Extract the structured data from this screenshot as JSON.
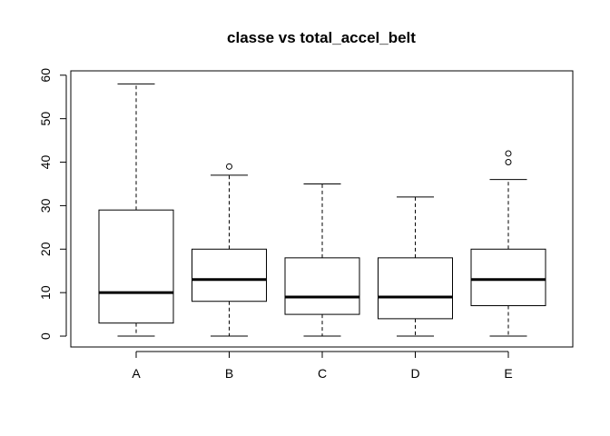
{
  "chart_data": {
    "type": "boxplot",
    "title": "classe vs total_accel_belt",
    "xlabel": "",
    "ylabel": "",
    "ylim": [
      -2.5,
      61
    ],
    "yticks": [
      0,
      10,
      20,
      30,
      40,
      50,
      60
    ],
    "categories": [
      "A",
      "B",
      "C",
      "D",
      "E"
    ],
    "boxes": [
      {
        "min": 0,
        "q1": 3,
        "median": 10,
        "q3": 29,
        "max": 58,
        "outliers": []
      },
      {
        "min": 0,
        "q1": 8,
        "median": 13,
        "q3": 20,
        "max": 37,
        "outliers": [
          39
        ]
      },
      {
        "min": 0,
        "q1": 5,
        "median": 9,
        "q3": 18,
        "max": 35,
        "outliers": []
      },
      {
        "min": 0,
        "q1": 4,
        "median": 9,
        "q3": 18,
        "max": 32,
        "outliers": []
      },
      {
        "min": 0,
        "q1": 7,
        "median": 13,
        "q3": 20,
        "max": 36,
        "outliers": [
          40,
          42
        ]
      }
    ],
    "grid": false,
    "legend": "none"
  }
}
